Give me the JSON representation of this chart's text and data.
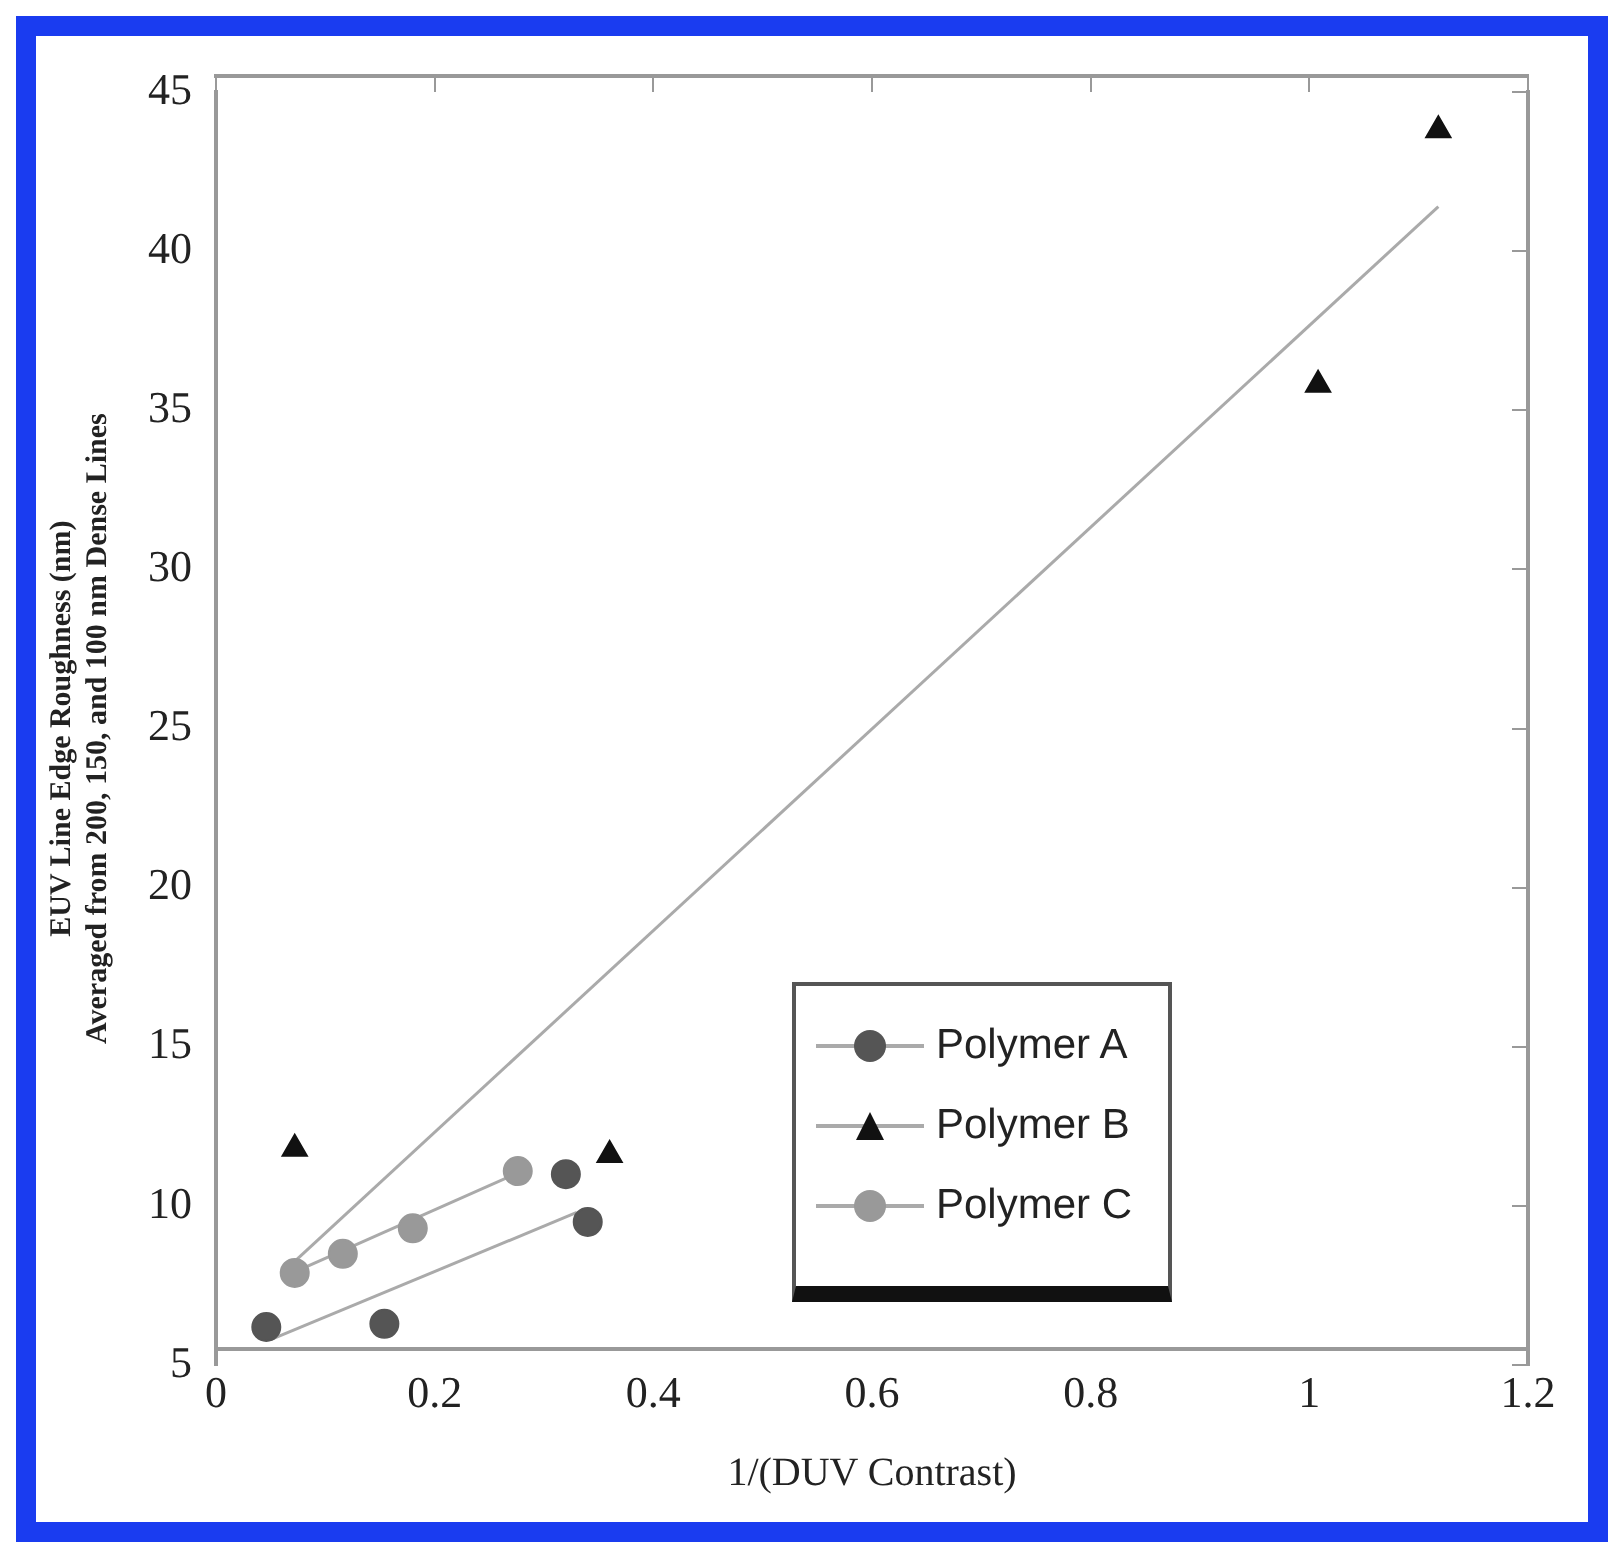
{
  "chart_data": {
    "type": "scatter",
    "xlabel": "1/(DUV Contrast)",
    "ylabel": "EUV Line Edge Roughness (nm)\nAveraged from 200, 150, and 100 nm Dense Lines",
    "xlim": [
      0,
      1.2
    ],
    "xticks": [
      0,
      0.2,
      0.4,
      0.6,
      0.8,
      1,
      1.2
    ],
    "ylim": [
      5,
      45
    ],
    "yticks": [
      5,
      10,
      15,
      20,
      25,
      30,
      35,
      40,
      45
    ],
    "grid": false,
    "legend": "bottom right",
    "series": [
      {
        "name": "Polymer A",
        "marker": "circle",
        "color": "#555555",
        "x": [
          0.046,
          0.154,
          0.32,
          0.34
        ],
        "values": [
          6.2,
          6.3,
          11.0,
          9.5
        ]
      },
      {
        "name": "Polymer B",
        "marker": "triangle",
        "color": "#111111",
        "x": [
          0.072,
          0.36,
          1.008,
          1.118
        ],
        "values": [
          11.8,
          11.6,
          35.8,
          43.8
        ]
      },
      {
        "name": "Polymer C",
        "marker": "circle",
        "color": "#999999",
        "x": [
          0.072,
          0.116,
          0.18,
          0.276
        ],
        "values": [
          7.9,
          8.5,
          9.3,
          11.1
        ]
      },
      {
        "type": "line",
        "marker": "none",
        "color": "#aaaaaa",
        "x": [
          0.05,
          0.33
        ],
        "values": [
          5.8,
          9.8
        ]
      },
      {
        "type": "line",
        "marker": "none",
        "color": "#aaaaaa",
        "x": [
          0.07,
          1.118
        ],
        "values": [
          8.2,
          41.4
        ]
      },
      {
        "type": "line",
        "marker": "none",
        "color": "#aaaaaa",
        "x": [
          0.07,
          0.28
        ],
        "values": [
          7.9,
          11.1
        ]
      }
    ]
  }
}
